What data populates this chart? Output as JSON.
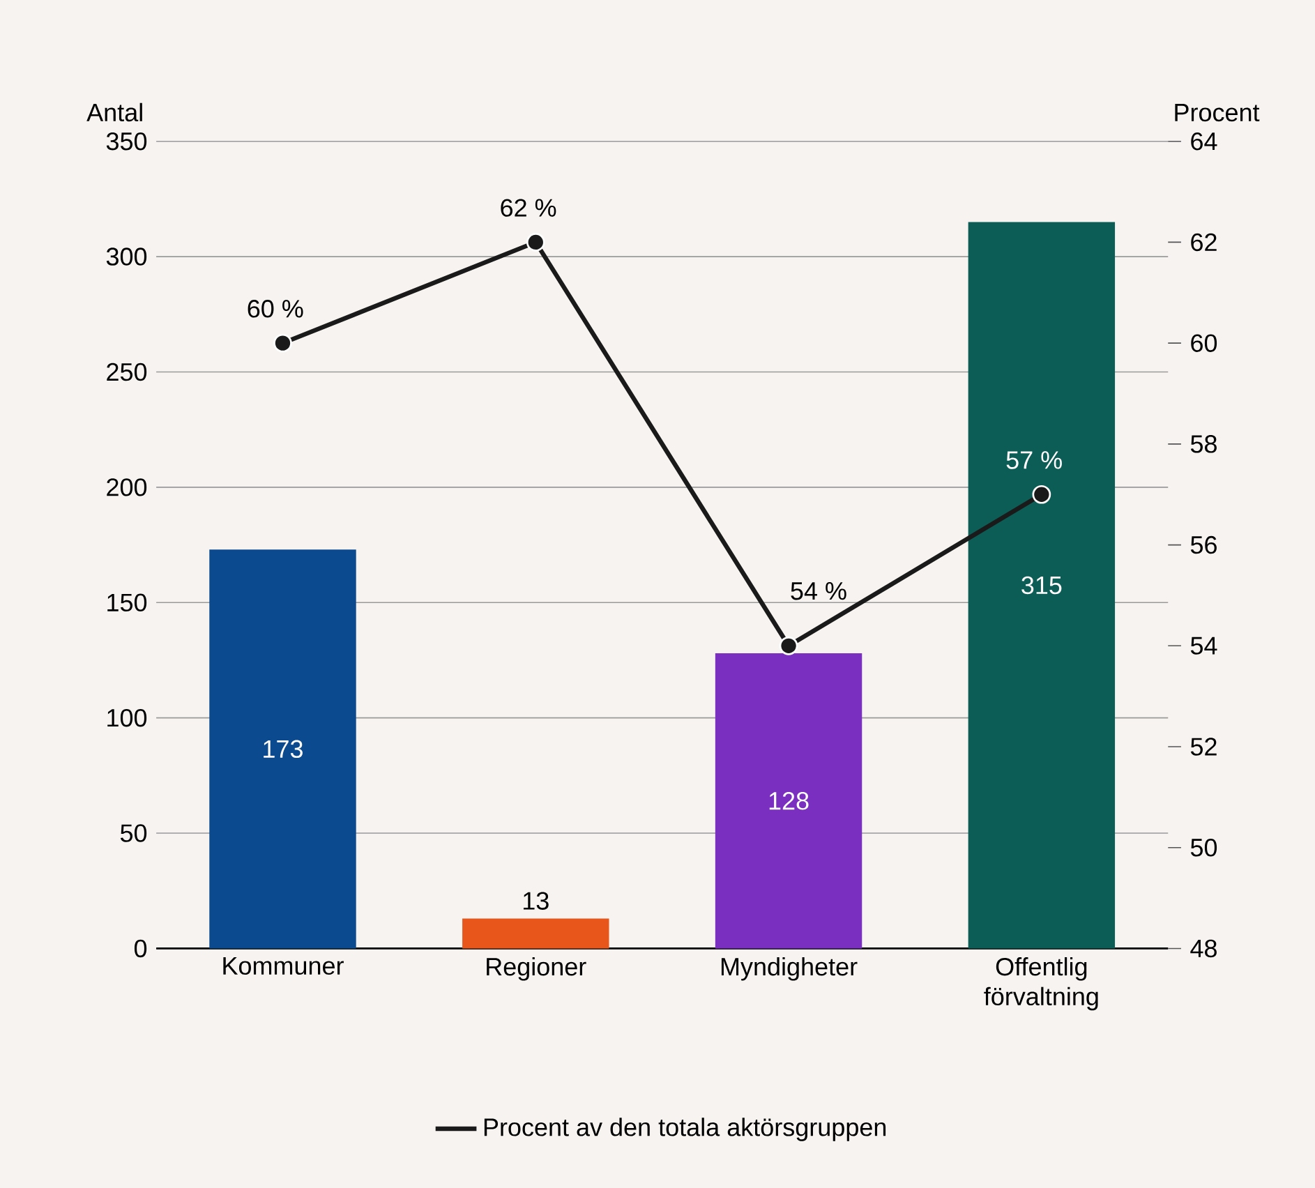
{
  "chart_data": {
    "type": "bar",
    "ylabel": "Antal",
    "y2label": "Procent",
    "categories": [
      "Kommuner",
      "Regioner",
      "Myndigheter",
      "Offentlig förvaltning"
    ],
    "series": [
      {
        "colors": [
          "#0b4a8e",
          "#e8561c",
          "#7b2fc0",
          "#0d5d57"
        ],
        "values": [
          173,
          13,
          128,
          315
        ],
        "value_labels": [
          "173",
          "13",
          "128",
          "315"
        ]
      },
      {
        "type": "line",
        "name": "Procent av den totala aktörsgruppen",
        "color": "#1a1a1a",
        "axis": "y2",
        "marker": "circle",
        "line_style": "solid",
        "values": [
          60,
          62,
          54,
          57
        ],
        "value_labels": [
          "60 %",
          "62 %",
          "54 %",
          "57 %"
        ]
      }
    ],
    "ylim": [
      0,
      350
    ],
    "yticks": [
      0,
      50,
      100,
      150,
      200,
      250,
      300,
      350
    ],
    "y2lim": [
      48,
      64
    ],
    "y2ticks": [
      48,
      50,
      52,
      54,
      56,
      58,
      60,
      62,
      64
    ],
    "grid": "y",
    "legend": "bottom"
  }
}
